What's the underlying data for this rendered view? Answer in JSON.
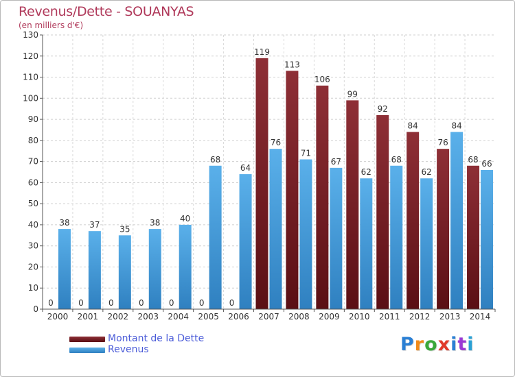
{
  "title": "Revenus/Dette - SOUANYAS",
  "subtitle": "(en milliers d'€)",
  "colors": {
    "dette": "#6b1a1f",
    "revenus": "#3f9ad6",
    "title": "#b03a5b",
    "legend_text": "#4a5bd8"
  },
  "legend": [
    {
      "label": "Montant de la Dette",
      "color": "#6b1a1f"
    },
    {
      "label": "Revenus",
      "color": "#3f9ad6"
    }
  ],
  "logo": {
    "text": "Proxiti"
  },
  "chart_data": {
    "type": "bar",
    "title": "Revenus/Dette - SOUANYAS",
    "subtitle": "(en milliers d'€)",
    "categories": [
      "2000",
      "2001",
      "2002",
      "2003",
      "2004",
      "2005",
      "2006",
      "2007",
      "2008",
      "2009",
      "2010",
      "2011",
      "2012",
      "2013",
      "2014"
    ],
    "series": [
      {
        "name": "Montant de la Dette",
        "values": [
          0,
          0,
          0,
          0,
          0,
          0,
          0,
          119,
          113,
          106,
          99,
          92,
          84,
          76,
          68
        ]
      },
      {
        "name": "Revenus",
        "values": [
          38,
          37,
          35,
          38,
          40,
          68,
          64,
          76,
          71,
          67,
          62,
          68,
          62,
          84,
          66
        ]
      }
    ],
    "ylim": [
      0,
      130
    ],
    "yticks": [
      0,
      10,
      20,
      30,
      40,
      50,
      60,
      70,
      80,
      90,
      100,
      110,
      120,
      130
    ],
    "grid": true,
    "legend_position": "bottom-left"
  }
}
